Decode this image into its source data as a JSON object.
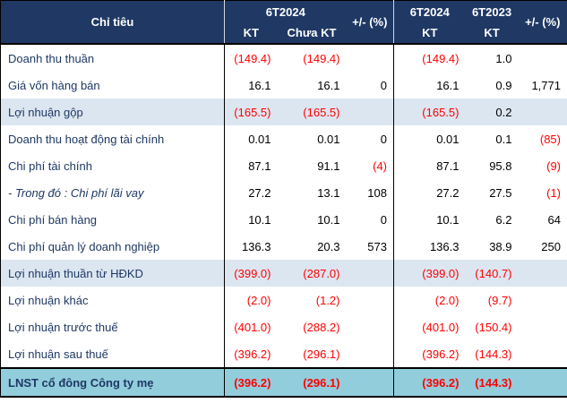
{
  "colors": {
    "header_bg": "#1F3864",
    "band_bg": "#DCE6F1",
    "total_bg": "#92CDDC",
    "negative_text": "#FF0000",
    "label_text": "#1F3864"
  },
  "table": {
    "header": {
      "col_label": "Chỉ tiêu",
      "group1_title": "6T2024",
      "group1_sub1": "KT",
      "group1_sub2": "Chưa KT",
      "group1_change": "+/- (%)",
      "group2_col1_top": "6T2024",
      "group2_col1_bottom": "KT",
      "group2_col2_top": "6T2023",
      "group2_col2_bottom": "KT",
      "group2_change": "+/- (%)"
    },
    "rows": [
      {
        "label": "Doanh thu thuần",
        "style": "normal",
        "cells": [
          "(149.4)",
          "(149.4)",
          "",
          "(149.4)",
          "1.0",
          ""
        ]
      },
      {
        "label": "Giá vốn hàng bán",
        "style": "normal",
        "cells": [
          "16.1",
          "16.1",
          "0",
          "16.1",
          "0.9",
          "1,771"
        ]
      },
      {
        "label": "Lợi nhuận gộp",
        "style": "band",
        "cells": [
          "(165.5)",
          "(165.5)",
          "",
          "(165.5)",
          "0.2",
          ""
        ]
      },
      {
        "label": "Doanh thu hoạt động tài chính",
        "style": "normal",
        "cells": [
          "0.01",
          "0.01",
          "0",
          "0.01",
          "0.1",
          "(85)"
        ]
      },
      {
        "label": "Chi phí tài chính",
        "style": "normal",
        "cells": [
          "87.1",
          "91.1",
          "(4)",
          "87.1",
          "95.8",
          "(9)"
        ]
      },
      {
        "label": "- Trong đó : Chi phí lãi vay",
        "style": "italic",
        "cells": [
          "27.2",
          "13.1",
          "108",
          "27.2",
          "27.5",
          "(1)"
        ]
      },
      {
        "label": "Chi phí bán hàng",
        "style": "normal",
        "cells": [
          "10.1",
          "10.1",
          "0",
          "10.1",
          "6.2",
          "64"
        ]
      },
      {
        "label": "Chi phí quản lý doanh nghiệp",
        "style": "normal",
        "cells": [
          "136.3",
          "20.3",
          "573",
          "136.3",
          "38.9",
          "250"
        ]
      },
      {
        "label": "Lợi nhuận thuần từ HĐKD",
        "style": "band",
        "cells": [
          "(399.0)",
          "(287.0)",
          "",
          "(399.0)",
          "(140.7)",
          ""
        ]
      },
      {
        "label": "Lợi nhuận khác",
        "style": "normal",
        "cells": [
          "(2.0)",
          "(1.2)",
          "",
          "(2.0)",
          "(9.7)",
          ""
        ]
      },
      {
        "label": "Lợi nhuận trước thuế",
        "style": "normal",
        "cells": [
          "(401.0)",
          "(288.2)",
          "",
          "(401.0)",
          "(150.4)",
          ""
        ]
      },
      {
        "label": "Lợi nhuận sau thuế",
        "style": "normal",
        "cells": [
          "(396.2)",
          "(296.1)",
          "",
          "(396.2)",
          "(144.3)",
          ""
        ]
      },
      {
        "label": "LNST cổ đông Công ty mẹ",
        "style": "total",
        "cells": [
          "(396.2)",
          "(296.1)",
          "",
          "(396.2)",
          "(144.3)",
          ""
        ]
      }
    ]
  }
}
